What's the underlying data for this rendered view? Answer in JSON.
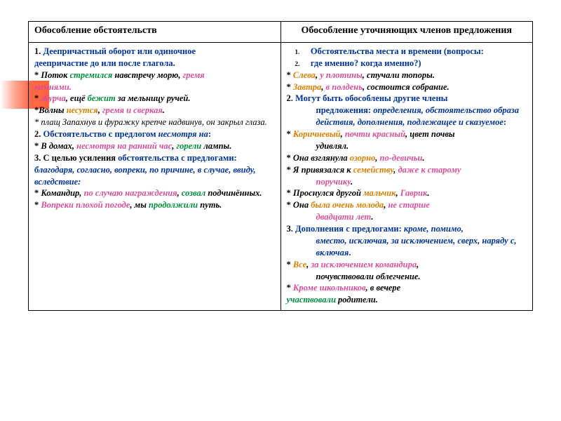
{
  "head": {
    "left": "Обособление обстоятельств",
    "right": "Обособление уточняющих членов предложения"
  },
  "L": {
    "r1a": "1. ",
    "r1b": "Деепричастный оборот или одиночное",
    "r1c": "деепричастие  до или после глагола.",
    "r2a": "* ",
    "r2b": "Поток ",
    "r2c": "стремился",
    "r2d": " навстречу морю, ",
    "r2e": "гремя",
    "r2f": "камнями.",
    "r3a": "* ",
    "r3b": "Журча",
    "r3c": ", ещё ",
    "r3d": "бежит",
    "r3e": " за мельницу ручей.",
    "r4a": "*",
    "r4b": "Волны ",
    "r4c": "несутся",
    "r4d": ", ",
    "r4e": "гремя и сверкая",
    "r4f": ".",
    "r5a": "* плащ Запахнув  и фуражку крепче надвинув, он закрыл глаза.",
    "r6a": "2. ",
    "r6b": "Обстоятельство с предлогом ",
    "r6c": "несмотря на",
    "r6d": ":",
    "r7a": "* ",
    "r7b": "В домах, ",
    "r7c": "несмотря на ранний час",
    "r7d": ", ",
    "r7e": "горели",
    "r7f": " лампы.",
    "r8a": "3. ",
    "r8b": "С целью усиления ",
    "r8c": "обстоятельства с предлогами: ",
    "r8d": "благодаря, согласно, вопреки, по причине, в случае, ввиду, вследствие:",
    "r9a": "* ",
    "r9b": "Командир, ",
    "r9c": "по случаю награждения",
    "r9d": ", ",
    "r9e": "созвал",
    "r9f": " подчинённых.",
    "r10a": "* ",
    "r10b": "Вопреки плохой погоде",
    "r10c": ", мы ",
    "r10d": "продолжили",
    "r10e": " путь."
  },
  "R": {
    "n1": "1.",
    "n1t": "Обстоятельства места и времени (вопросы:",
    "n2": "2.",
    "n2t": "где именно? когда именно?)",
    "r1a": "* ",
    "r1b": "Слева",
    "r1c": ", ",
    "r1d": "у плотины",
    "r1e": ", ",
    "r1f": "стучали топоры.",
    "r2a": "* ",
    "r2b": "Завтра",
    "r2c": ", ",
    "r2d": "в полдень",
    "r2e": ", состоится собрание.",
    "r3a": "2",
    "r3b": ". Могут быть обособлены другие члены",
    "r3c": "предложения: ",
    "r3d": "определения, обстоятельство образа действия, дополнения, подлежащее и сказуемое",
    "r3e": ":",
    "r4a": "* ",
    "r4b": "Коричневый",
    "r4c": ", ",
    "r4d": "почти красный",
    "r4e": ", цвет почвы",
    "r4f": "удивлял.",
    "r5a": "* ",
    "r5b": "Она взглянула ",
    "r5c": "озорно",
    "r5d": ", ",
    "r5e": "по-девичьи",
    "r5f": ".",
    "r6a": "* ",
    "r6b": "Я привязался к ",
    "r6c": "семейству",
    "r6d": ", ",
    "r6e": "даже к старому",
    "r6f": "поручику",
    "r6g": ".",
    "r7a": "* ",
    "r7b": "Проснулся другой ",
    "r7c": "мальчик",
    "r7d": ", ",
    "r7e": "Гаврик",
    "r7f": ".",
    "r8a": "* ",
    "r8b": "Она ",
    "r8c": "была очень молода",
    "r8d": ", ",
    "r8e": "не старше",
    "r8f": "двадцати лет",
    "r8g": ".",
    "r9a": "3",
    "r9b": ". Дополнения с предлогами: ",
    "r9c": "кроме, помимо,",
    "r9d": "вместо, исключая, за исключением, сверх, наряду с, включая",
    "r9e": ".",
    "r10a": "* ",
    "r10b": "Все",
    "r10c": ", ",
    "r10d": "за исключением командира",
    "r10e": ",",
    "r10f": "почувствовали облегчение.",
    "r11a": "* ",
    "r11b": "Кроме школьников",
    "r11c": ", в вечере",
    "r11d": "участвовали",
    "r11e": " родители."
  }
}
